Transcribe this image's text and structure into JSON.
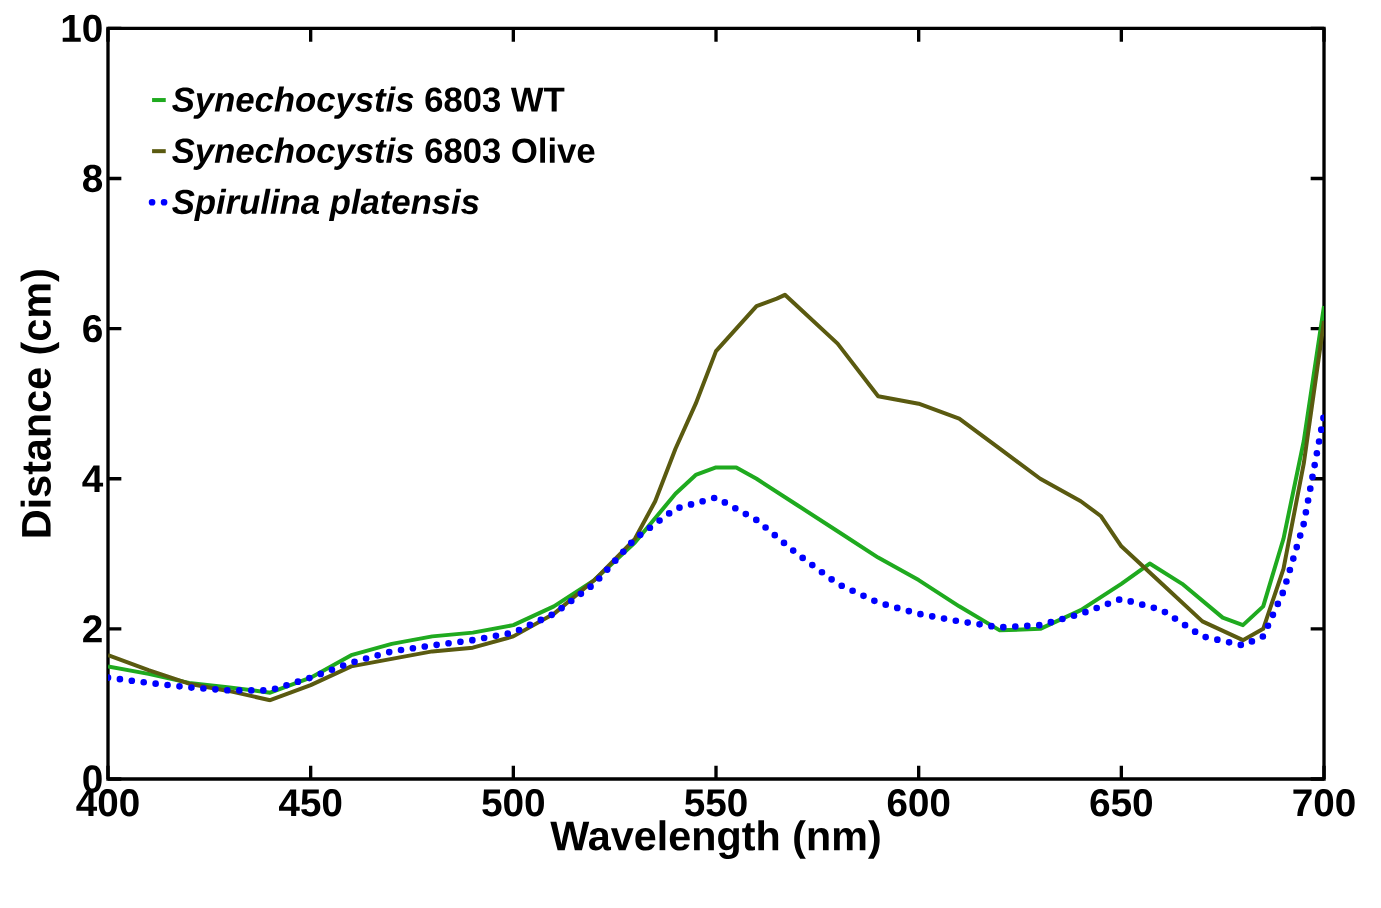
{
  "chart_data": {
    "type": "line",
    "xlabel": "Wavelength (nm)",
    "ylabel": "Distance (cm)",
    "xlim": [
      400,
      700
    ],
    "xticks": [
      400,
      450,
      500,
      550,
      600,
      650,
      700
    ],
    "ylim": [
      0,
      10
    ],
    "yticks": [
      0,
      2,
      4,
      6,
      8,
      10
    ],
    "grid": false,
    "legend": "top left",
    "marker": "none",
    "series": [
      {
        "name": "*Synechocystis* 6803 WT",
        "color": "#1faa1f",
        "line_style": "solid",
        "x": [
          400,
          410,
          420,
          430,
          440,
          450,
          460,
          470,
          480,
          490,
          500,
          510,
          520,
          530,
          540,
          545,
          550,
          555,
          560,
          570,
          580,
          590,
          600,
          610,
          620,
          630,
          640,
          650,
          657,
          665,
          675,
          680,
          685,
          690,
          695,
          700
        ],
        "values": [
          1.5,
          1.4,
          1.28,
          1.22,
          1.15,
          1.35,
          1.65,
          1.8,
          1.9,
          1.95,
          2.05,
          2.3,
          2.65,
          3.15,
          3.8,
          4.05,
          4.15,
          4.15,
          4.0,
          3.65,
          3.3,
          2.95,
          2.65,
          2.3,
          1.98,
          2.0,
          2.25,
          2.6,
          2.87,
          2.6,
          2.15,
          2.05,
          2.3,
          3.2,
          4.5,
          6.3
        ]
      },
      {
        "name": "*Synechocystis* 6803 Olive",
        "color": "#5a5a10",
        "line_style": "solid",
        "x": [
          400,
          410,
          420,
          430,
          440,
          450,
          460,
          470,
          480,
          490,
          500,
          510,
          520,
          530,
          535,
          540,
          545,
          550,
          555,
          560,
          565,
          567,
          570,
          580,
          590,
          600,
          610,
          620,
          630,
          640,
          645,
          650,
          660,
          670,
          680,
          685,
          690,
          695,
          700
        ],
        "values": [
          1.65,
          1.45,
          1.27,
          1.17,
          1.05,
          1.25,
          1.5,
          1.6,
          1.7,
          1.75,
          1.9,
          2.2,
          2.65,
          3.2,
          3.7,
          4.4,
          5.0,
          5.7,
          6.0,
          6.3,
          6.4,
          6.45,
          6.3,
          5.8,
          5.1,
          5.0,
          4.8,
          4.4,
          4.0,
          3.7,
          3.5,
          3.1,
          2.6,
          2.1,
          1.85,
          2.0,
          2.8,
          4.2,
          6.1
        ]
      },
      {
        "name": "*Spirulina platensis*",
        "color": "#0000ff",
        "line_style": "dotted",
        "x": [
          400,
          410,
          420,
          430,
          440,
          450,
          460,
          470,
          480,
          490,
          500,
          510,
          520,
          530,
          540,
          550,
          560,
          570,
          580,
          590,
          600,
          610,
          620,
          630,
          640,
          650,
          660,
          670,
          680,
          685,
          690,
          695,
          700
        ],
        "values": [
          1.35,
          1.28,
          1.22,
          1.18,
          1.18,
          1.35,
          1.55,
          1.7,
          1.78,
          1.85,
          1.95,
          2.2,
          2.6,
          3.2,
          3.6,
          3.75,
          3.45,
          3.0,
          2.6,
          2.35,
          2.2,
          2.1,
          2.02,
          2.05,
          2.2,
          2.4,
          2.25,
          1.9,
          1.78,
          1.9,
          2.5,
          3.4,
          4.85
        ]
      }
    ]
  }
}
